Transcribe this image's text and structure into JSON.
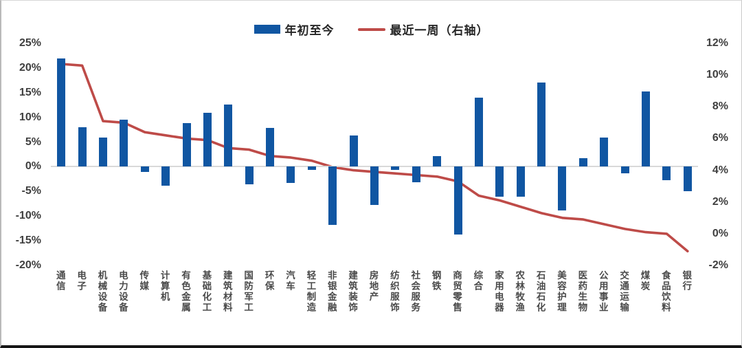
{
  "legend": {
    "items": [
      {
        "label": "年初至今",
        "marker": "bar-swatch",
        "color": "#1056A2"
      },
      {
        "label": "最近一周（右轴）",
        "marker": "line-swatch",
        "color": "#BE4B48"
      }
    ]
  },
  "colors": {
    "bar": "#1056A2",
    "line": "#BE4B48",
    "axis_text": "#3f3f3f",
    "category_text": "#4a4a4a",
    "zero_line": "#d9d9d9"
  },
  "chart_data": {
    "type": "bar",
    "subtype": "bar+line-dual-axis",
    "title": "",
    "xlabel": "",
    "ylabel": "",
    "grid": "zero-line-only",
    "legend_position": "top-center",
    "categories": [
      "通信",
      "电子",
      "机械设备",
      "电力设备",
      "传媒",
      "计算机",
      "有色金属",
      "基础化工",
      "建筑材料",
      "国防军工",
      "环保",
      "汽车",
      "轻工制造",
      "非银金融",
      "建筑装饰",
      "房地产",
      "纺织服饰",
      "社会服务",
      "钢铁",
      "商贸零售",
      "综合",
      "家用电器",
      "农林牧渔",
      "石油石化",
      "美容护理",
      "医药生物",
      "公用事业",
      "交通运输",
      "煤炭",
      "食品饮料",
      "银行"
    ],
    "series": [
      {
        "name": "年初至今",
        "type": "bar",
        "axis": "left",
        "unit": "%",
        "color": "#1056A2",
        "values": [
          21.9,
          8.0,
          5.9,
          9.6,
          -1.0,
          -3.8,
          8.8,
          10.9,
          12.6,
          -3.6,
          7.8,
          -3.3,
          -0.6,
          -11.8,
          6.3,
          -7.8,
          -0.7,
          -3.1,
          2.2,
          -13.7,
          14.0,
          -6.1,
          -6.0,
          17.0,
          -8.8,
          1.7,
          5.9,
          -1.4,
          15.3,
          -2.7,
          -5.0
        ]
      },
      {
        "name": "最近一周（右轴）",
        "type": "line",
        "axis": "right",
        "unit": "%",
        "color": "#BE4B48",
        "values": [
          10.7,
          10.6,
          7.1,
          7.0,
          6.4,
          6.2,
          6.0,
          5.9,
          5.4,
          5.3,
          4.9,
          4.8,
          4.6,
          4.2,
          4.0,
          3.9,
          3.8,
          3.7,
          3.6,
          3.3,
          2.4,
          2.1,
          1.7,
          1.3,
          1.0,
          0.9,
          0.6,
          0.3,
          0.1,
          0.0,
          -1.1
        ]
      }
    ],
    "left_axis": {
      "min": -20,
      "max": 25,
      "ticks": [
        {
          "label": "25%",
          "value": 25
        },
        {
          "label": "20%",
          "value": 20
        },
        {
          "label": "15%",
          "value": 15
        },
        {
          "label": "10%",
          "value": 10
        },
        {
          "label": "5%",
          "value": 5
        },
        {
          "label": "0%",
          "value": 0
        },
        {
          "label": "-5%",
          "value": -5
        },
        {
          "label": "-10%",
          "value": -10
        },
        {
          "label": "-15%",
          "value": -15
        },
        {
          "label": "-20%",
          "value": -20
        }
      ]
    },
    "right_axis": {
      "min": -2,
      "max": 12,
      "ticks": [
        {
          "label": "12%",
          "value": 12
        },
        {
          "label": "10%",
          "value": 10
        },
        {
          "label": "8%",
          "value": 8
        },
        {
          "label": "6%",
          "value": 6
        },
        {
          "label": "4%",
          "value": 4
        },
        {
          "label": "2%",
          "value": 2
        },
        {
          "label": "0%",
          "value": 0
        },
        {
          "label": "-2%",
          "value": -2
        }
      ]
    }
  }
}
